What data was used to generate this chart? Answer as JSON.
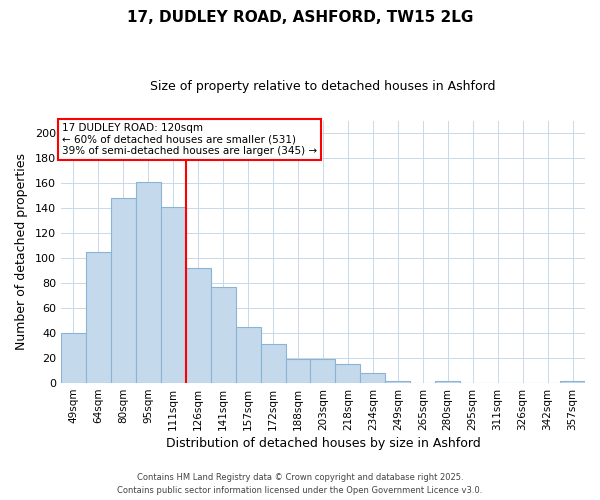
{
  "title": "17, DUDLEY ROAD, ASHFORD, TW15 2LG",
  "subtitle": "Size of property relative to detached houses in Ashford",
  "xlabel": "Distribution of detached houses by size in Ashford",
  "ylabel": "Number of detached properties",
  "categories": [
    "49sqm",
    "64sqm",
    "80sqm",
    "95sqm",
    "111sqm",
    "126sqm",
    "141sqm",
    "157sqm",
    "172sqm",
    "188sqm",
    "203sqm",
    "218sqm",
    "234sqm",
    "249sqm",
    "265sqm",
    "280sqm",
    "295sqm",
    "311sqm",
    "326sqm",
    "342sqm",
    "357sqm"
  ],
  "values": [
    40,
    105,
    148,
    161,
    141,
    92,
    77,
    45,
    31,
    19,
    19,
    15,
    8,
    2,
    0,
    2,
    0,
    0,
    0,
    0,
    2
  ],
  "bar_color": "#c5d9ed",
  "bar_edge_color": "#8ab4d4",
  "vline_x": 4.5,
  "vline_label": "17 DUDLEY ROAD: 120sqm",
  "annotation_line1": "← 60% of detached houses are smaller (531)",
  "annotation_line2": "39% of semi-detached houses are larger (345) →",
  "ylim": [
    0,
    210
  ],
  "yticks": [
    0,
    20,
    40,
    60,
    80,
    100,
    120,
    140,
    160,
    180,
    200
  ],
  "footnote1": "Contains HM Land Registry data © Crown copyright and database right 2025.",
  "footnote2": "Contains public sector information licensed under the Open Government Licence v3.0.",
  "bg_color": "#ffffff",
  "grid_color": "#c8d8e8"
}
